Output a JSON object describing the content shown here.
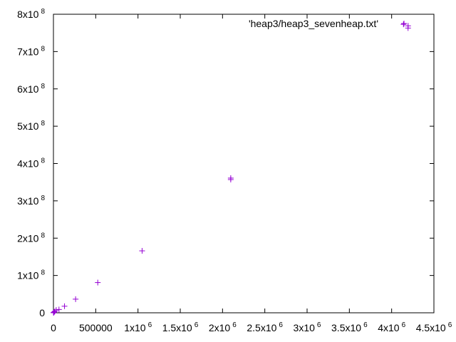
{
  "chart_data": {
    "type": "scatter",
    "title": "",
    "xlabel": "",
    "ylabel": "",
    "xlim": [
      0,
      4500000
    ],
    "ylim": [
      0,
      800000000
    ],
    "grid": false,
    "legend_position": "top-right",
    "marker": "plus",
    "color": "#9400d3",
    "x_ticks": [
      {
        "value": 0,
        "mantissa": "0",
        "exp": ""
      },
      {
        "value": 500000,
        "mantissa": "500000",
        "exp": ""
      },
      {
        "value": 1000000,
        "mantissa": "1x10",
        "exp": "6"
      },
      {
        "value": 1500000,
        "mantissa": "1.5x10",
        "exp": "6"
      },
      {
        "value": 2000000,
        "mantissa": "2x10",
        "exp": "6"
      },
      {
        "value": 2500000,
        "mantissa": "2.5x10",
        "exp": "6"
      },
      {
        "value": 3000000,
        "mantissa": "3x10",
        "exp": "6"
      },
      {
        "value": 3500000,
        "mantissa": "3.5x10",
        "exp": "6"
      },
      {
        "value": 4000000,
        "mantissa": "4x10",
        "exp": "6"
      },
      {
        "value": 4500000,
        "mantissa": "4.5x10",
        "exp": "6"
      }
    ],
    "y_ticks": [
      {
        "value": 0,
        "mantissa": "0",
        "exp": ""
      },
      {
        "value": 100000000,
        "mantissa": "1x10",
        "exp": "8"
      },
      {
        "value": 200000000,
        "mantissa": "2x10",
        "exp": "8"
      },
      {
        "value": 300000000,
        "mantissa": "3x10",
        "exp": "8"
      },
      {
        "value": 400000000,
        "mantissa": "4x10",
        "exp": "8"
      },
      {
        "value": 500000000,
        "mantissa": "5x10",
        "exp": "8"
      },
      {
        "value": 600000000,
        "mantissa": "6x10",
        "exp": "8"
      },
      {
        "value": 700000000,
        "mantissa": "7x10",
        "exp": "8"
      },
      {
        "value": 800000000,
        "mantissa": "8x10",
        "exp": "8"
      }
    ],
    "series": [
      {
        "name": "'heap3/heap3_sevenheap.txt'",
        "points": [
          {
            "x": 1024,
            "y": 240000
          },
          {
            "x": 2048,
            "y": 480000
          },
          {
            "x": 4096,
            "y": 950000
          },
          {
            "x": 8192,
            "y": 1900000
          },
          {
            "x": 16384,
            "y": 3800000
          },
          {
            "x": 32768,
            "y": 7400000
          },
          {
            "x": 65536,
            "y": 8800000
          },
          {
            "x": 131072,
            "y": 17600000
          },
          {
            "x": 262144,
            "y": 36500000
          },
          {
            "x": 524288,
            "y": 81000000
          },
          {
            "x": 1048576,
            "y": 166000000
          },
          {
            "x": 2097152,
            "y": 357000000
          },
          {
            "x": 2097152,
            "y": 361000000
          },
          {
            "x": 4140000,
            "y": 773000000
          },
          {
            "x": 4194304,
            "y": 763000000
          },
          {
            "x": 4194304,
            "y": 769000000
          }
        ]
      }
    ]
  }
}
